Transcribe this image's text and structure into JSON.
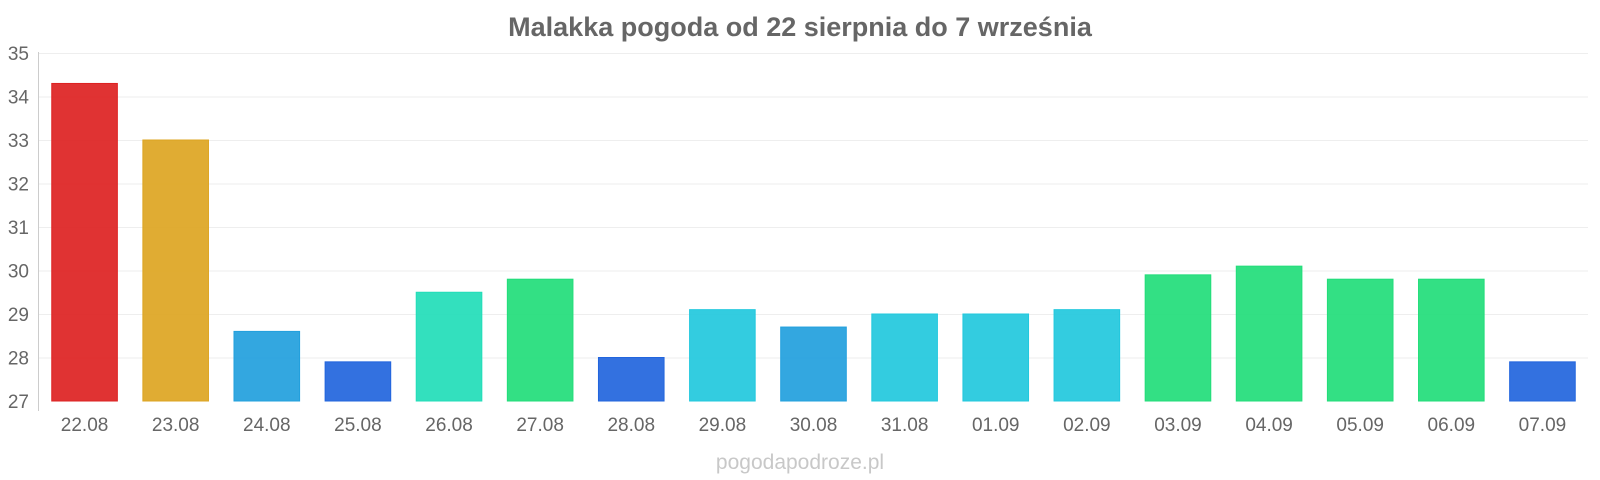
{
  "chart_data": {
    "type": "bar",
    "title": "Malakka pogoda od 22 sierpnia do 7 września",
    "xlabel": "",
    "ylabel": "",
    "ylim": [
      27,
      35
    ],
    "yticks": [
      "27",
      "28",
      "29",
      "30",
      "31",
      "32",
      "33",
      "34",
      "35"
    ],
    "categories": [
      "22.08",
      "23.08",
      "24.08",
      "25.08",
      "26.08",
      "27.08",
      "28.08",
      "29.08",
      "30.08",
      "31.08",
      "01.09",
      "02.09",
      "03.09",
      "04.09",
      "05.09",
      "06.09",
      "07.09"
    ],
    "values": [
      34.3,
      33.0,
      28.6,
      27.9,
      29.5,
      29.8,
      28.0,
      29.1,
      28.7,
      29.0,
      29.0,
      29.1,
      29.9,
      30.1,
      29.8,
      29.8,
      27.9
    ],
    "colors": [
      "#dd2222",
      "#dda522",
      "#22a0dd",
      "#2265dd",
      "#22ddb8",
      "#22dd7a",
      "#2265dd",
      "#22c8dd",
      "#22a0dd",
      "#22c8dd",
      "#22c8dd",
      "#22c8dd",
      "#22dd7a",
      "#22dd7a",
      "#22dd7a",
      "#22dd7a",
      "#2265dd"
    ],
    "grid": true,
    "legend": "none"
  },
  "watermark": "pogodapodroze.pl"
}
